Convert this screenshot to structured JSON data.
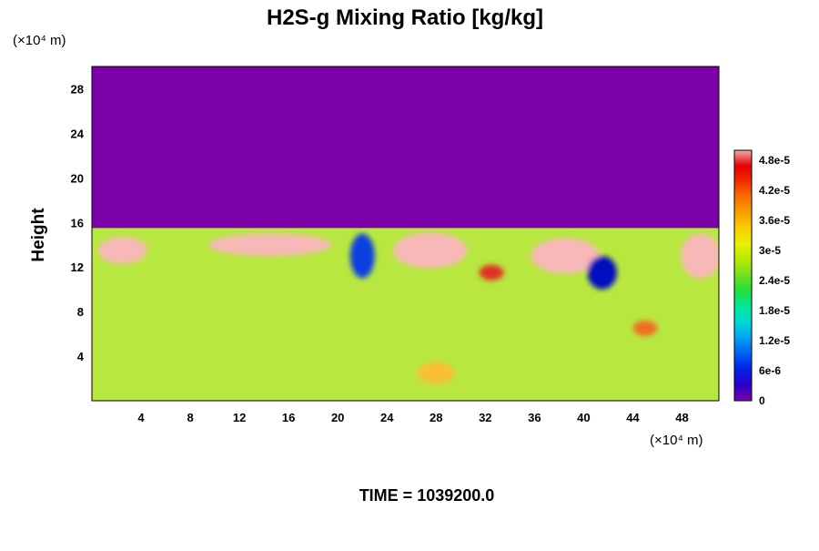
{
  "chart_data": {
    "type": "heatmap",
    "title": "H2S-g Mixing Ratio [kg/kg]",
    "ylabel": "Height",
    "x_unit_label": "(×10⁴ m)",
    "y_unit_label": "(×10⁴ m)",
    "footer": "TIME = 1039200.0",
    "xlim": [
      0,
      51
    ],
    "ylim": [
      0,
      30
    ],
    "xticks": [
      "4",
      "8",
      "12",
      "16",
      "20",
      "24",
      "28",
      "32",
      "36",
      "40",
      "44",
      "48"
    ],
    "yticks": [
      "4",
      "8",
      "12",
      "16",
      "20",
      "24",
      "28"
    ],
    "colorbar": {
      "range": [
        0,
        5e-05
      ],
      "tick_labels": [
        "0",
        "6e-6",
        "1.2e-5",
        "1.8e-5",
        "2.4e-5",
        "3e-5",
        "3.6e-5",
        "4.2e-5",
        "4.8e-5"
      ],
      "colors": [
        "#7b00a8",
        "#2a00c8",
        "#0020e8",
        "#0060f0",
        "#00a0f0",
        "#00d8d8",
        "#00e89a",
        "#20e040",
        "#70e020",
        "#b8e800",
        "#e8f000",
        "#f8d000",
        "#f8a000",
        "#f87000",
        "#f03000",
        "#e00000",
        "#f8a8a8"
      ]
    },
    "field": {
      "background": "#7b00a8",
      "lower_layer_top": 15.5,
      "lower_layer_color": "#b8e840",
      "features": [
        {
          "x": 2.5,
          "y": 13.5,
          "rx": 2.0,
          "ry": 1.2,
          "color": "#f8b8b8"
        },
        {
          "x": 14.5,
          "y": 14.0,
          "rx": 5.0,
          "ry": 1.0,
          "color": "#f8b8b8"
        },
        {
          "x": 27.5,
          "y": 13.5,
          "rx": 3.0,
          "ry": 1.6,
          "color": "#f8b8b8"
        },
        {
          "x": 38.5,
          "y": 13.0,
          "rx": 2.8,
          "ry": 1.6,
          "color": "#f8b8b8"
        },
        {
          "x": 49.5,
          "y": 13.0,
          "rx": 1.6,
          "ry": 2.0,
          "color": "#f8b8b8"
        },
        {
          "x": 22.0,
          "y": 13.0,
          "rx": 1.0,
          "ry": 2.0,
          "color": "#1040e0"
        },
        {
          "x": 41.5,
          "y": 11.5,
          "rx": 1.2,
          "ry": 1.5,
          "color": "#0010c0"
        },
        {
          "x": 28.0,
          "y": 2.5,
          "rx": 1.5,
          "ry": 1.0,
          "color": "#f8c030"
        },
        {
          "x": 45.0,
          "y": 6.5,
          "rx": 1.0,
          "ry": 0.7,
          "color": "#f07020"
        },
        {
          "x": 32.5,
          "y": 11.5,
          "rx": 1.0,
          "ry": 0.7,
          "color": "#e03020"
        }
      ]
    }
  }
}
